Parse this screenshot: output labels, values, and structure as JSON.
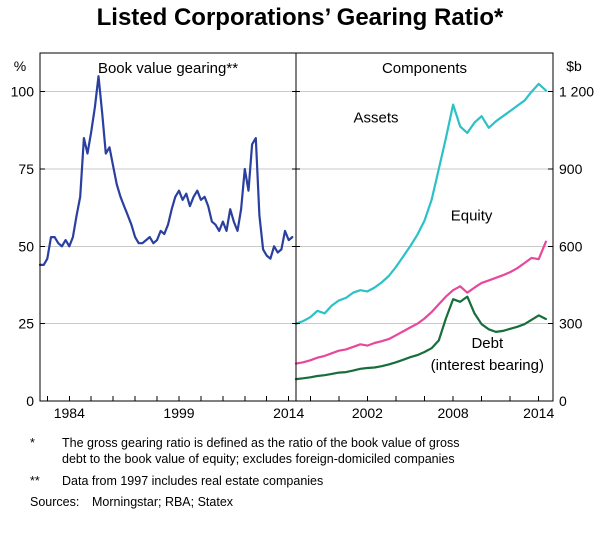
{
  "title": "Listed Corporations’ Gearing Ratio*",
  "left_unit": "%",
  "right_unit": "$b",
  "colors": {
    "gearing": "#2a3f9f",
    "assets": "#2cc1c6",
    "equity": "#e8489b",
    "debt": "#176e3c",
    "grid": "#c9c9c9",
    "axis": "#000000"
  },
  "footnotes": [
    {
      "marker": "*",
      "text": "The gross gearing ratio is defined as the ratio of the book value of gross debt to the book value of equity; excludes foreign-domiciled companies"
    },
    {
      "marker": "**",
      "text": "Data from 1997 includes real estate companies"
    }
  ],
  "sources_label": "Sources:",
  "sources": "Morningstar; RBA; Statex",
  "chart_data": [
    {
      "type": "line",
      "panel": "left",
      "title": "Book value gearing**",
      "ylabel": "%",
      "ylim": [
        0,
        112.5
      ],
      "yticks": [
        0,
        25,
        50,
        75,
        100
      ],
      "ytick_labels": [
        "0",
        "25",
        "50",
        "75",
        "100"
      ],
      "xlim": [
        1980,
        2015
      ],
      "xticks": [
        1984,
        1999,
        2014
      ],
      "xticks_minor": [
        1981,
        1984,
        1987,
        1990,
        1993,
        1996,
        1999,
        2002,
        2005,
        2008,
        2011,
        2014
      ],
      "grid": true,
      "series": [
        {
          "name": "Book value gearing",
          "color": "#2a3f9f",
          "x_start": 1980,
          "x_step": 0.5,
          "values": [
            44,
            44,
            46,
            53,
            53,
            51,
            50,
            52,
            50,
            53,
            60,
            66,
            85,
            80,
            87,
            95,
            105,
            93,
            80,
            82,
            76,
            70,
            66,
            63,
            60,
            57,
            53,
            51,
            51,
            52,
            53,
            51,
            52,
            55,
            54,
            57,
            62,
            66,
            68,
            65,
            67,
            63,
            66,
            68,
            65,
            66,
            63,
            58,
            57,
            55,
            58,
            55,
            62,
            58,
            55,
            62,
            75,
            68,
            83,
            85,
            60,
            49,
            47,
            46,
            50,
            48,
            49,
            55,
            52,
            53
          ]
        }
      ],
      "annotations": []
    },
    {
      "type": "line",
      "panel": "right",
      "title": "Components",
      "ylabel": "$b",
      "ylim": [
        0,
        1350
      ],
      "yticks": [
        0,
        300,
        600,
        900,
        1200
      ],
      "ytick_labels": [
        "0",
        "300",
        "600",
        "900",
        "1 200"
      ],
      "xlim": [
        1997,
        2015
      ],
      "xticks": [
        2002,
        2008,
        2014
      ],
      "xticks_minor": [
        1998,
        2000,
        2002,
        2004,
        2006,
        2008,
        2010,
        2012,
        2014
      ],
      "grid": true,
      "series": [
        {
          "name": "Assets",
          "color": "#2cc1c6",
          "x_start": 1997,
          "x_step": 0.5,
          "values": [
            300,
            310,
            325,
            350,
            340,
            370,
            390,
            400,
            420,
            430,
            425,
            440,
            460,
            485,
            520,
            560,
            600,
            645,
            700,
            780,
            900,
            1020,
            1150,
            1065,
            1040,
            1080,
            1105,
            1060,
            1085,
            1105,
            1125,
            1145,
            1165,
            1200,
            1230,
            1205
          ]
        },
        {
          "name": "Equity",
          "color": "#e8489b",
          "x_start": 1997,
          "x_step": 0.5,
          "values": [
            145,
            150,
            158,
            168,
            175,
            185,
            195,
            200,
            210,
            220,
            215,
            225,
            232,
            240,
            255,
            270,
            285,
            300,
            320,
            345,
            375,
            405,
            430,
            445,
            420,
            440,
            458,
            468,
            478,
            488,
            500,
            515,
            535,
            555,
            550,
            618
          ]
        },
        {
          "name": "Debt (interest bearing)",
          "color": "#176e3c",
          "x_start": 1997,
          "x_step": 0.5,
          "values": [
            85,
            88,
            92,
            97,
            100,
            105,
            110,
            112,
            118,
            125,
            128,
            130,
            135,
            142,
            150,
            160,
            170,
            178,
            190,
            205,
            235,
            320,
            395,
            385,
            405,
            340,
            298,
            278,
            268,
            272,
            280,
            288,
            298,
            315,
            332,
            318
          ]
        }
      ],
      "annotations": [
        {
          "text": "Assets",
          "x": 2002.6,
          "y": 1080,
          "color": "#2cc1c6"
        },
        {
          "text": "Equity",
          "x": 2009.3,
          "y": 700,
          "color": "#e8489b"
        },
        {
          "text": "Debt",
          "x": 2010.4,
          "y": 205,
          "color": "#176e3c"
        },
        {
          "text": "(interest bearing)",
          "x": 2010.4,
          "y": 120,
          "color": "#176e3c"
        }
      ]
    }
  ]
}
